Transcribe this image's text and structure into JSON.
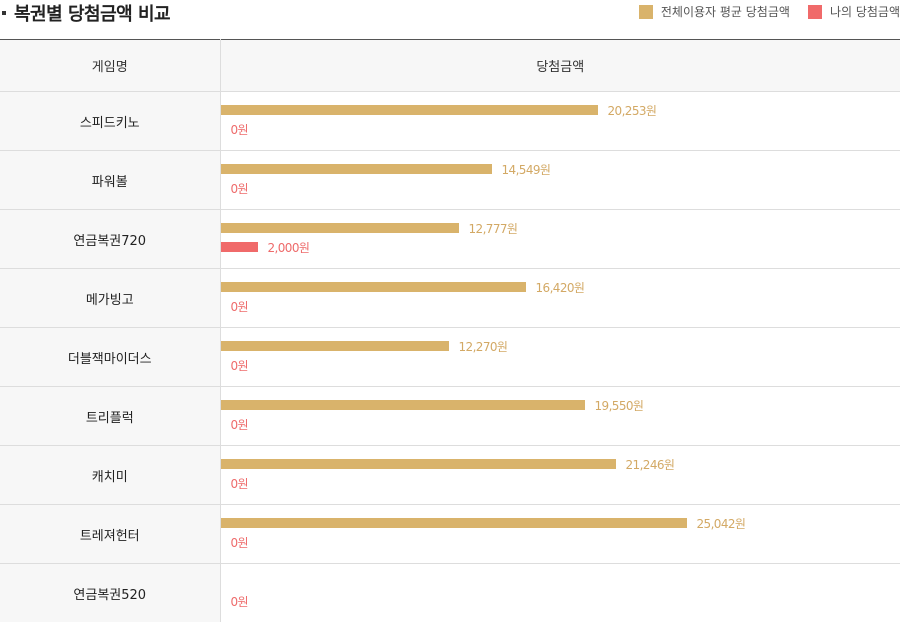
{
  "header": {
    "title": "복권별 당첨금액 비교"
  },
  "legend": {
    "avg_label": "전체이용자 평균 당첨금액",
    "mine_label": "나의 당첨금액"
  },
  "table": {
    "col_name_header": "게임명",
    "col_amount_header": "당첨금액"
  },
  "colors": {
    "average": "#d9b36b",
    "mine": "#f06a6a"
  },
  "chart_data": {
    "type": "bar",
    "orientation": "horizontal",
    "value_unit": "원",
    "xlim": [
      0,
      36500
    ],
    "categories": [
      "스피드키노",
      "파워볼",
      "연금복권720",
      "메가빙고",
      "더블잭마이더스",
      "트리플럭",
      "캐치미",
      "트레져헌터",
      "연금복권520"
    ],
    "series": [
      {
        "name": "전체이용자 평균 당첨금액",
        "values": [
          20253,
          14549,
          12777,
          16420,
          12270,
          19550,
          21246,
          25042,
          null
        ],
        "labels": [
          "20,253원",
          "14,549원",
          "12,777원",
          "16,420원",
          "12,270원",
          "19,550원",
          "21,246원",
          "25,042원",
          ""
        ]
      },
      {
        "name": "나의 당첨금액",
        "values": [
          0,
          0,
          2000,
          0,
          0,
          0,
          0,
          0,
          0
        ],
        "labels": [
          "0원",
          "0원",
          "2,000원",
          "0원",
          "0원",
          "0원",
          "0원",
          "0원",
          "0원"
        ]
      }
    ]
  }
}
